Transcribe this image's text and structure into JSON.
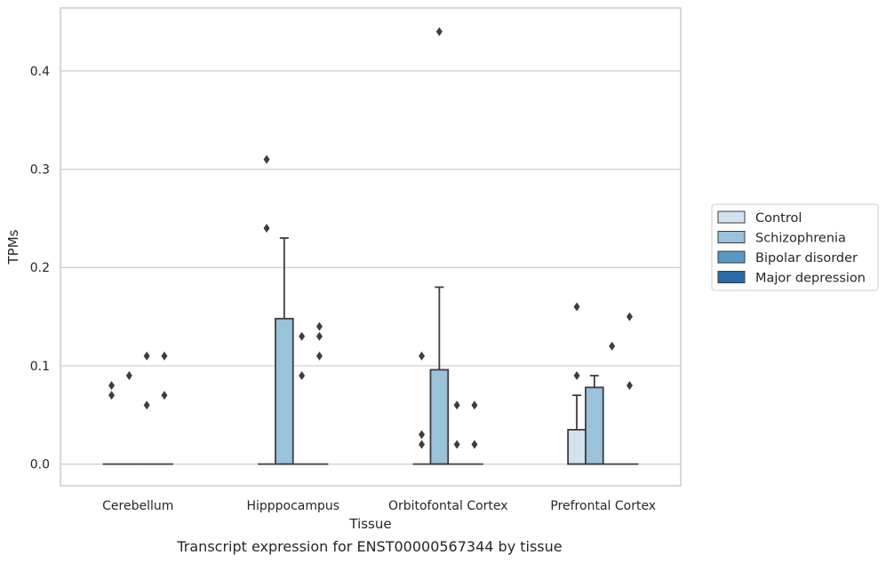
{
  "chart_data": {
    "type": "box",
    "xlabel": "Tissue",
    "ylabel": "TPMs",
    "caption": "Transcript expression for ENST00000567344 by tissue",
    "ylim": [
      -0.022,
      0.464
    ],
    "yticks": [
      0.0,
      0.1,
      0.2,
      0.3,
      0.4
    ],
    "ytick_labels": [
      "0.0",
      "0.1",
      "0.2",
      "0.3",
      "0.4"
    ],
    "grid": "horizontal",
    "legend_placement": "right",
    "categories": [
      "Cerebellum",
      "Hipppocampus",
      "Orbitofontal Cortex",
      "Prefrontal Cortex"
    ],
    "series": [
      {
        "name": "Control",
        "color": "#d2e2f0",
        "boxes": [
          {
            "q1": 0,
            "median": 0,
            "q3": 0,
            "whisker_low": 0,
            "whisker_high": 0,
            "outliers": [
              0.07,
              0.08
            ]
          },
          {
            "q1": 0,
            "median": 0,
            "q3": 0,
            "whisker_low": 0,
            "whisker_high": 0,
            "outliers": [
              0.24,
              0.31
            ]
          },
          {
            "q1": 0,
            "median": 0,
            "q3": 0,
            "whisker_low": 0,
            "whisker_high": 0,
            "outliers": [
              0.02,
              0.03,
              0.11
            ]
          },
          {
            "q1": 0,
            "median": 0,
            "q3": 0.035,
            "whisker_low": 0,
            "whisker_high": 0.07,
            "outliers": [
              0.09,
              0.16
            ]
          }
        ]
      },
      {
        "name": "Schizophrenia",
        "color": "#9ac2db",
        "boxes": [
          {
            "q1": 0,
            "median": 0,
            "q3": 0,
            "whisker_low": 0,
            "whisker_high": 0,
            "outliers": [
              0.09
            ]
          },
          {
            "q1": 0,
            "median": 0,
            "q3": 0.148,
            "whisker_low": 0,
            "whisker_high": 0.23,
            "outliers": []
          },
          {
            "q1": 0,
            "median": 0,
            "q3": 0.096,
            "whisker_low": 0,
            "whisker_high": 0.18,
            "outliers": [
              0.44
            ]
          },
          {
            "q1": 0,
            "median": 0,
            "q3": 0.078,
            "whisker_low": 0,
            "whisker_high": 0.09,
            "outliers": []
          }
        ]
      },
      {
        "name": "Bipolar disorder",
        "color": "#5a97c4",
        "boxes": [
          {
            "q1": 0,
            "median": 0,
            "q3": 0,
            "whisker_low": 0,
            "whisker_high": 0,
            "outliers": [
              0.06,
              0.11
            ]
          },
          {
            "q1": 0,
            "median": 0,
            "q3": 0,
            "whisker_low": 0,
            "whisker_high": 0,
            "outliers": [
              0.09,
              0.13
            ]
          },
          {
            "q1": 0,
            "median": 0,
            "q3": 0,
            "whisker_low": 0,
            "whisker_high": 0,
            "outliers": [
              0.02,
              0.06
            ]
          },
          {
            "q1": 0,
            "median": 0,
            "q3": 0,
            "whisker_low": 0,
            "whisker_high": 0,
            "outliers": [
              0.12
            ]
          }
        ]
      },
      {
        "name": "Major depression",
        "color": "#2a6aa8",
        "boxes": [
          {
            "q1": 0,
            "median": 0,
            "q3": 0,
            "whisker_low": 0,
            "whisker_high": 0,
            "outliers": [
              0.07,
              0.11
            ]
          },
          {
            "q1": 0,
            "median": 0,
            "q3": 0,
            "whisker_low": 0,
            "whisker_high": 0,
            "outliers": [
              0.11,
              0.13,
              0.14
            ]
          },
          {
            "q1": 0,
            "median": 0,
            "q3": 0,
            "whisker_low": 0,
            "whisker_high": 0,
            "outliers": [
              0.02,
              0.06
            ]
          },
          {
            "q1": 0,
            "median": 0,
            "q3": 0,
            "whisker_low": 0,
            "whisker_high": 0,
            "outliers": [
              0.08,
              0.15
            ]
          }
        ]
      }
    ]
  }
}
